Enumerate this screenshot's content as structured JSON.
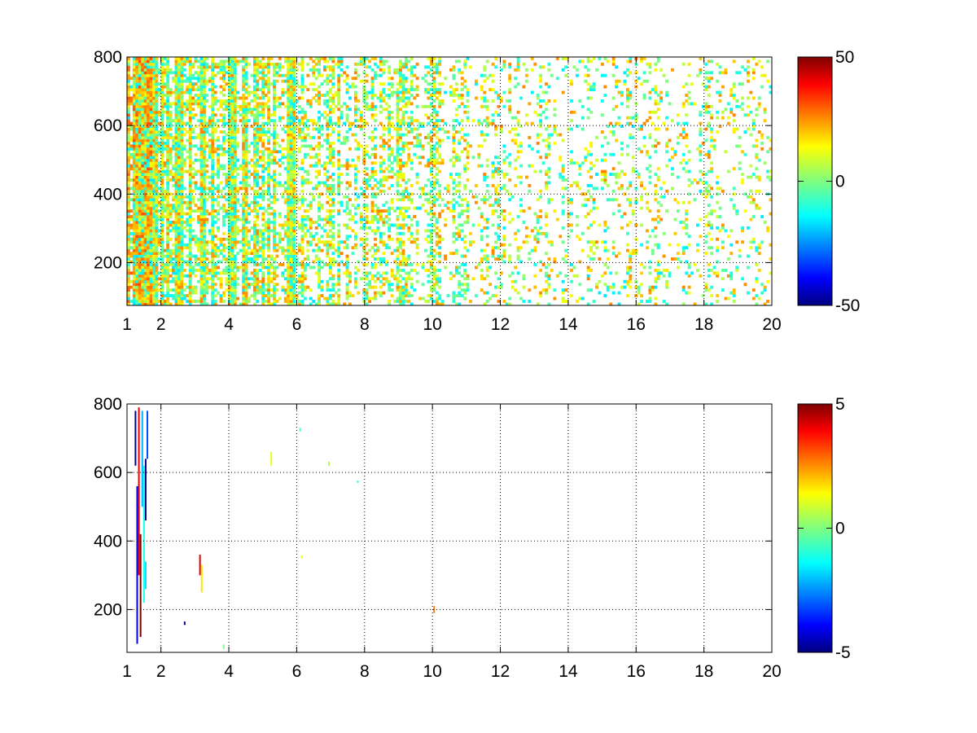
{
  "chart_data": [
    {
      "type": "heatmap",
      "title": "",
      "xlabel": "",
      "ylabel": "",
      "xlim": [
        1,
        20
      ],
      "ylim": [
        75,
        800
      ],
      "x_ticks": [
        "1",
        "2",
        "4",
        "6",
        "8",
        "10",
        "12",
        "14",
        "16",
        "18",
        "20"
      ],
      "x_tick_values": [
        1,
        2,
        4,
        6,
        8,
        10,
        12,
        14,
        16,
        18,
        20
      ],
      "y_ticks": [
        "200",
        "400",
        "600",
        "800"
      ],
      "y_tick_values": [
        200,
        400,
        600,
        800
      ],
      "grid": true,
      "colormap": "jet",
      "clim": [
        -50,
        50
      ],
      "colorbar_ticks": [
        "50",
        "0",
        "-50"
      ],
      "colorbar_tick_values": [
        50,
        0,
        -50
      ],
      "density_profile": [
        {
          "x": 1.0,
          "fill": 0.95
        },
        {
          "x": 2.0,
          "fill": 0.85
        },
        {
          "x": 4.0,
          "fill": 0.7
        },
        {
          "x": 6.0,
          "fill": 0.55
        },
        {
          "x": 8.0,
          "fill": 0.35
        },
        {
          "x": 10.0,
          "fill": 0.25
        },
        {
          "x": 12.0,
          "fill": 0.2
        },
        {
          "x": 20.0,
          "fill": 0.15
        }
      ],
      "value_range": [
        -15,
        25
      ],
      "hot_columns": [
        1.35,
        1.5,
        4.0,
        5.8,
        9.0,
        10.0
      ]
    },
    {
      "type": "heatmap",
      "title": "",
      "xlabel": "",
      "ylabel": "",
      "xlim": [
        1,
        20
      ],
      "ylim": [
        75,
        800
      ],
      "x_ticks": [
        "1",
        "2",
        "4",
        "6",
        "8",
        "10",
        "12",
        "14",
        "16",
        "18",
        "20"
      ],
      "x_tick_values": [
        1,
        2,
        4,
        6,
        8,
        10,
        12,
        14,
        16,
        18,
        20
      ],
      "y_ticks": [
        "200",
        "400",
        "600",
        "800"
      ],
      "y_tick_values": [
        200,
        400,
        600,
        800
      ],
      "grid": true,
      "colormap": "jet",
      "clim": [
        -5,
        5
      ],
      "colorbar_ticks": [
        "5",
        "0",
        "-5"
      ],
      "colorbar_tick_values": [
        5,
        0,
        -5
      ],
      "sparse_marks": [
        {
          "x": 1.25,
          "y0": 620,
          "y1": 780,
          "v": -5
        },
        {
          "x": 1.3,
          "y0": 100,
          "y1": 560,
          "v": -4
        },
        {
          "x": 1.35,
          "y0": 300,
          "y1": 790,
          "v": 4
        },
        {
          "x": 1.4,
          "y0": 120,
          "y1": 420,
          "v": 5
        },
        {
          "x": 1.45,
          "y0": 500,
          "y1": 780,
          "v": -2
        },
        {
          "x": 1.5,
          "y0": 220,
          "y1": 620,
          "v": -1
        },
        {
          "x": 1.55,
          "y0": 460,
          "y1": 640,
          "v": -5
        },
        {
          "x": 1.6,
          "y0": 640,
          "y1": 780,
          "v": -3
        },
        {
          "x": 1.55,
          "y0": 260,
          "y1": 340,
          "v": -1.5
        },
        {
          "x": 2.7,
          "y0": 155,
          "y1": 165,
          "v": -5
        },
        {
          "x": 3.15,
          "y0": 300,
          "y1": 360,
          "v": 4
        },
        {
          "x": 3.2,
          "y0": 250,
          "y1": 330,
          "v": 1.5
        },
        {
          "x": 3.85,
          "y0": 85,
          "y1": 98,
          "v": 0
        },
        {
          "x": 5.25,
          "y0": 620,
          "y1": 660,
          "v": 1
        },
        {
          "x": 6.1,
          "y0": 720,
          "y1": 730,
          "v": -0.5
        },
        {
          "x": 6.15,
          "y0": 350,
          "y1": 358,
          "v": 1
        },
        {
          "x": 6.95,
          "y0": 620,
          "y1": 632,
          "v": 0.5
        },
        {
          "x": 7.8,
          "y0": 570,
          "y1": 576,
          "v": -1
        },
        {
          "x": 10.05,
          "y0": 190,
          "y1": 210,
          "v": 2.5
        }
      ]
    }
  ]
}
